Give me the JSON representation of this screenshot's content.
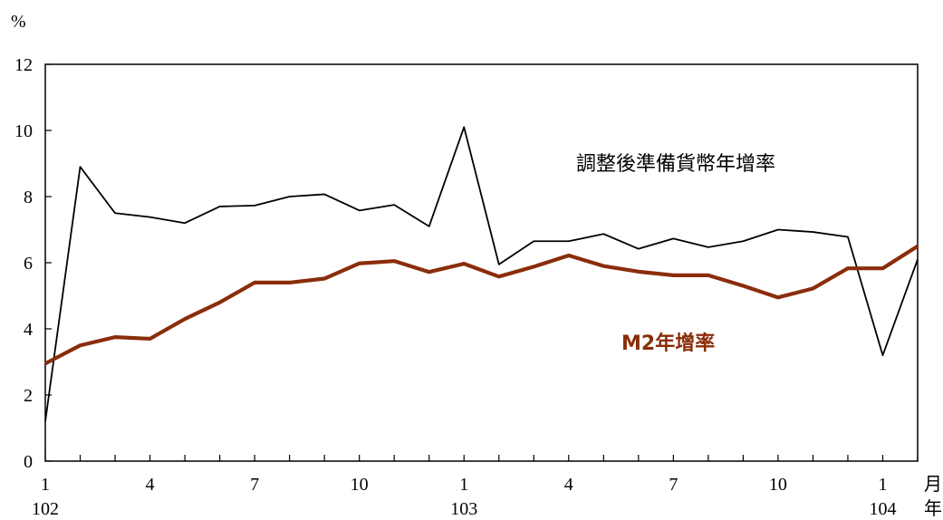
{
  "chart_data": {
    "type": "line",
    "y_unit": "%",
    "ylim": [
      0,
      12
    ],
    "y_ticks": [
      "0",
      "2",
      "4",
      "6",
      "8",
      "10",
      "12"
    ],
    "x_month_ticks": [
      {
        "index": 0,
        "label": "1"
      },
      {
        "index": 3,
        "label": "4"
      },
      {
        "index": 6,
        "label": "7"
      },
      {
        "index": 9,
        "label": "10"
      },
      {
        "index": 12,
        "label": "1"
      },
      {
        "index": 15,
        "label": "4"
      },
      {
        "index": 18,
        "label": "7"
      },
      {
        "index": 21,
        "label": "10"
      },
      {
        "index": 24,
        "label": "1"
      }
    ],
    "x_year_ticks": [
      {
        "index": 0,
        "label": "102"
      },
      {
        "index": 12,
        "label": "103"
      },
      {
        "index": 24,
        "label": "104"
      }
    ],
    "x_axis_unit_month": "月",
    "x_axis_unit_year": "年",
    "x": [
      "102-1",
      "102-2",
      "102-3",
      "102-4",
      "102-5",
      "102-6",
      "102-7",
      "102-8",
      "102-9",
      "102-10",
      "102-11",
      "102-12",
      "103-1",
      "103-2",
      "103-3",
      "103-4",
      "103-5",
      "103-6",
      "103-7",
      "103-8",
      "103-9",
      "103-10",
      "103-11",
      "103-12",
      "104-1",
      "104-2"
    ],
    "series": [
      {
        "name": "調整後準備貨幣年增率",
        "color": "#000000",
        "values": [
          1.2,
          8.9,
          7.5,
          7.38,
          7.2,
          7.7,
          7.73,
          8.0,
          8.07,
          7.58,
          7.75,
          7.1,
          10.1,
          5.95,
          6.65,
          6.65,
          6.87,
          6.42,
          6.73,
          6.47,
          6.65,
          7.0,
          6.93,
          6.78,
          3.2,
          6.1
        ]
      },
      {
        "name": "M2年增率",
        "color": "#8a2d0a",
        "values": [
          2.95,
          3.5,
          3.75,
          3.7,
          4.3,
          4.8,
          5.4,
          5.4,
          5.52,
          5.98,
          6.05,
          5.72,
          5.97,
          5.58,
          5.88,
          6.22,
          5.9,
          5.73,
          5.62,
          5.62,
          5.3,
          4.95,
          5.22,
          5.83,
          5.83,
          6.5
        ]
      }
    ],
    "grid": false
  }
}
